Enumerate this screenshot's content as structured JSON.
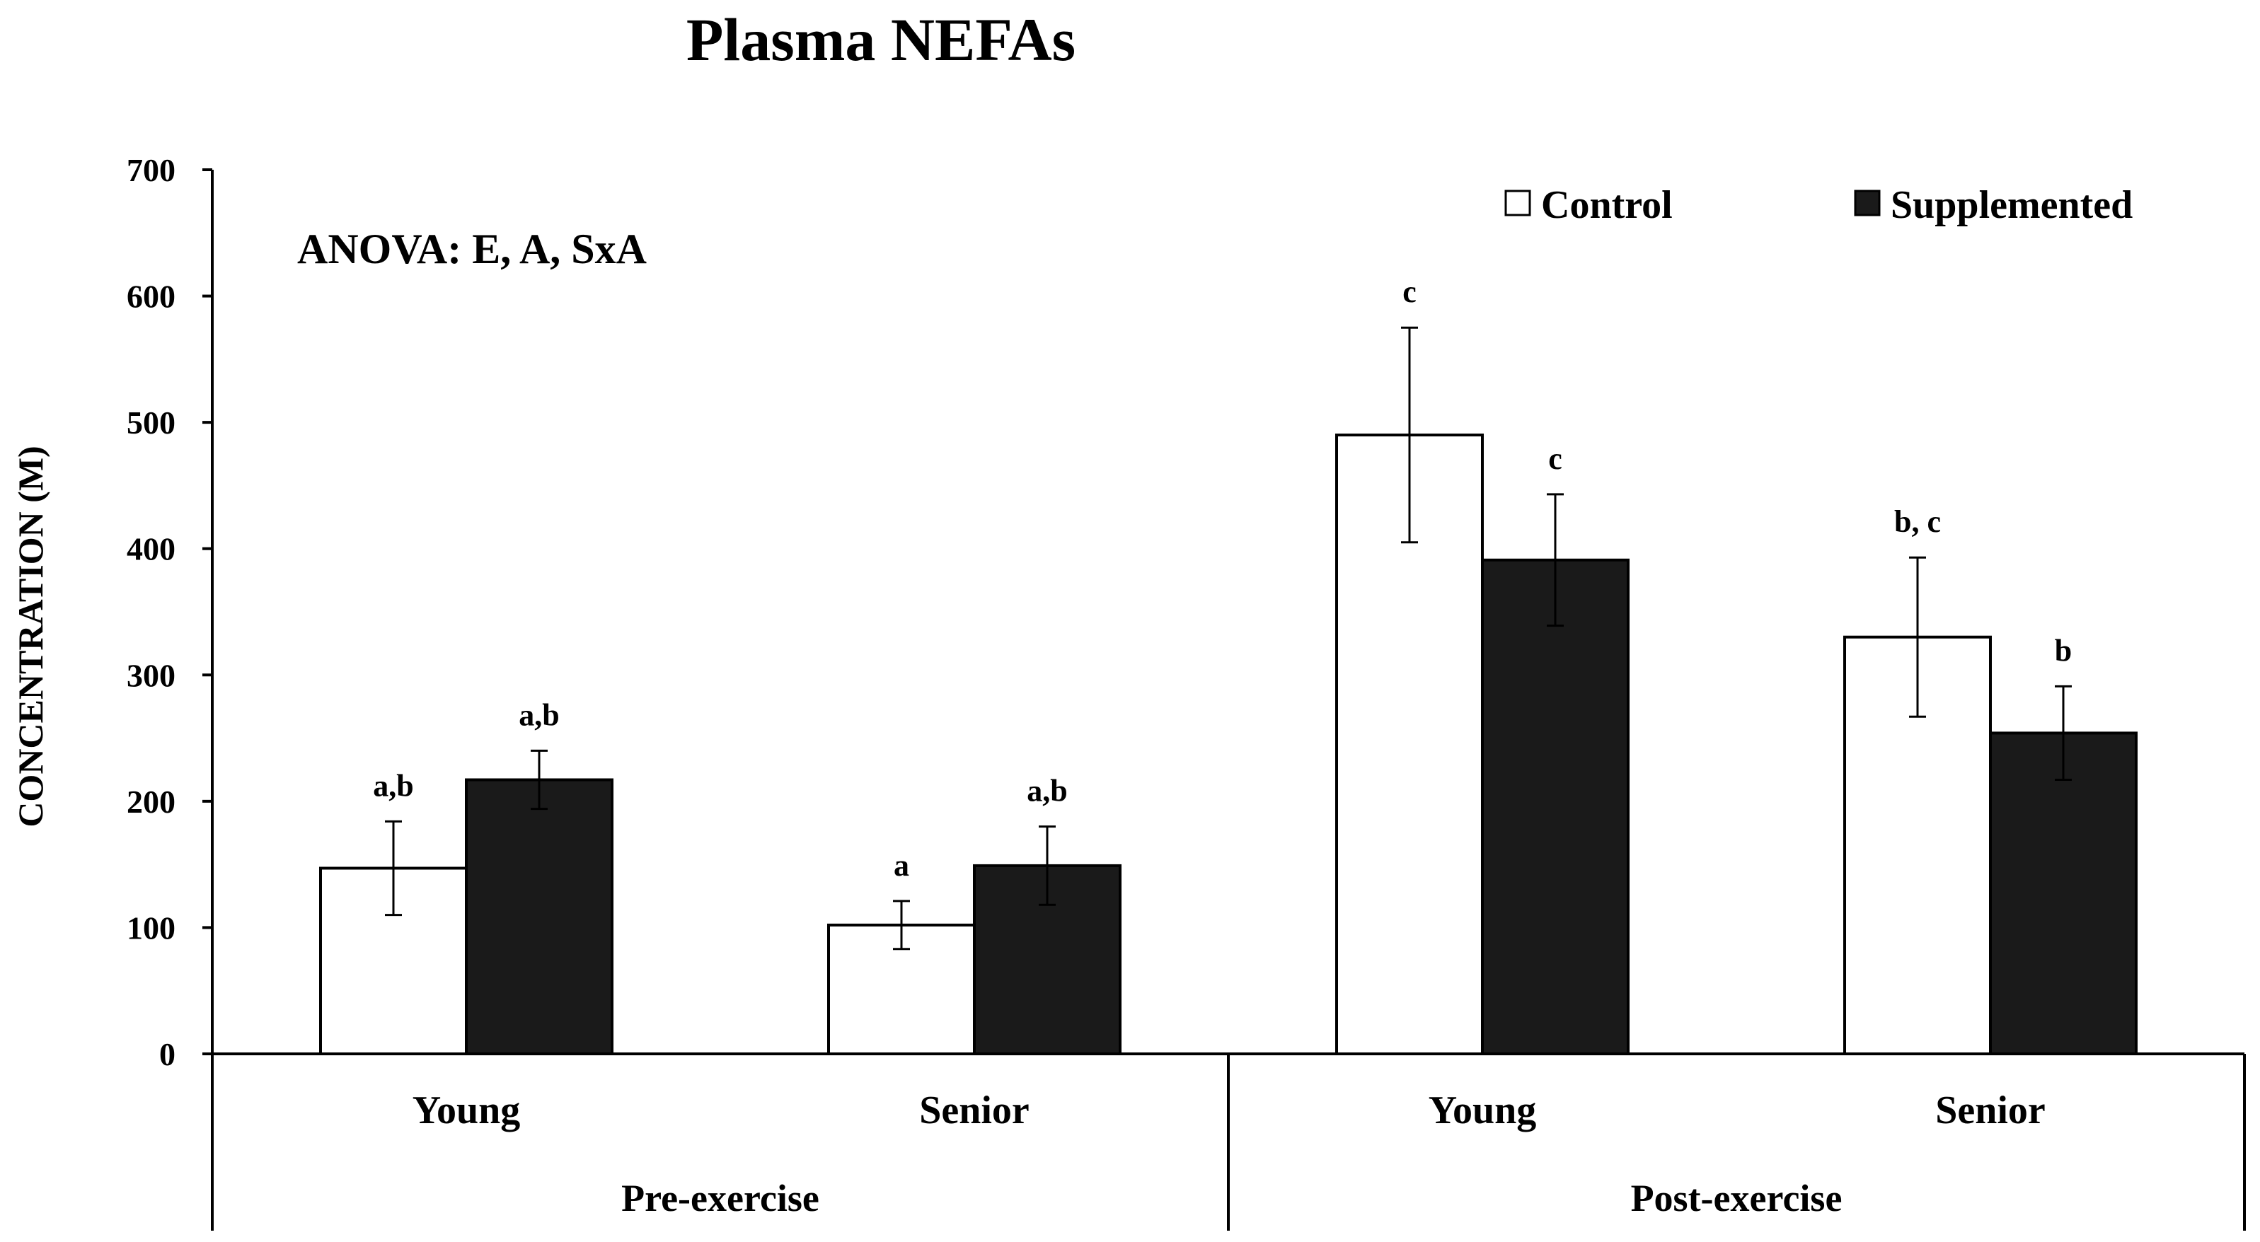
{
  "chart_data": {
    "type": "bar",
    "title": "Plasma NEFAs",
    "ylabel": "CONCENTRATION (M)",
    "xlabel": "",
    "ylim": [
      0,
      700
    ],
    "yticks": [
      0,
      100,
      200,
      300,
      400,
      500,
      600,
      700
    ],
    "grid": false,
    "legend_position": "top-right",
    "annotation": "ANOVA: E, A, SxA",
    "groups": [
      {
        "label": "Pre-exercise",
        "categories": [
          "Young",
          "Senior"
        ]
      },
      {
        "label": "Post-exercise",
        "categories": [
          "Young",
          "Senior"
        ]
      }
    ],
    "categories": [
      "Young",
      "Senior",
      "Young",
      "Senior"
    ],
    "series": [
      {
        "name": "Control",
        "color": "#ffffff",
        "values": [
          147,
          102,
          490,
          330
        ],
        "errors": [
          37,
          19,
          85,
          63
        ],
        "labels": [
          "a,b",
          "a",
          "c",
          "b, c"
        ]
      },
      {
        "name": "Supplemented",
        "color": "#1a1a1a",
        "values": [
          217,
          149,
          391,
          254
        ],
        "errors": [
          23,
          31,
          52,
          37
        ],
        "labels": [
          "a,b",
          "a,b",
          "c",
          "b"
        ]
      }
    ]
  }
}
